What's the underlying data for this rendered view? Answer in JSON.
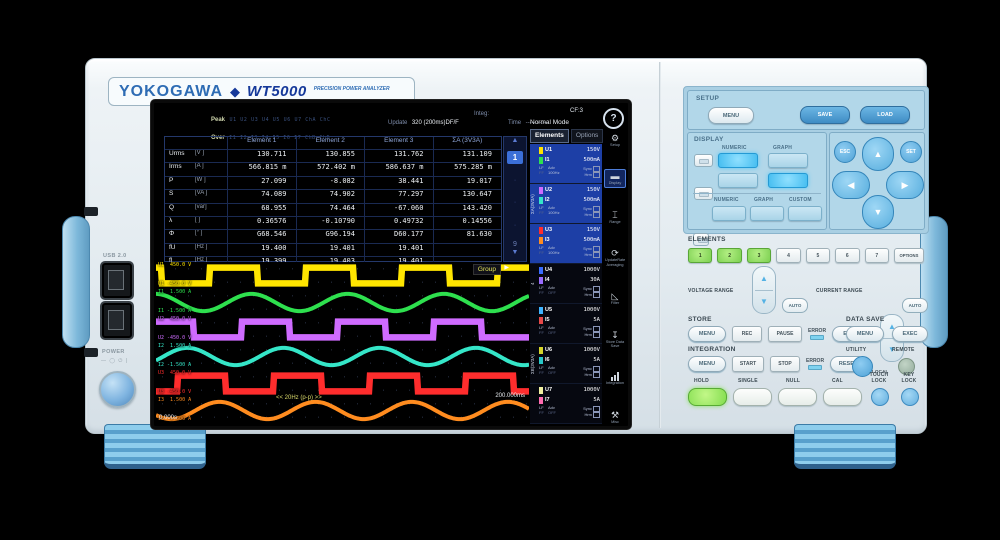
{
  "brand": {
    "logo": "YOKOGAWA",
    "diamond": "◆",
    "model": "WT5000",
    "tagline": "PRECISION POWER ANALYZER"
  },
  "left_side": {
    "usb_label": "USB 2.0",
    "power_label": "POWER",
    "power_symbols": "— ◯ ⏻ |"
  },
  "screen": {
    "status": {
      "peak_label": "Peak",
      "peak_values": "U1 U2 U3 U4 U5 U6 U7 ChA ChC",
      "over_label": "Over",
      "over_values": "I1 I2 I3 I4 I5 I6 I7 ChB ChD",
      "update_label": "Update",
      "update_value": "320 (200ms)DF/F",
      "integ_label": "Integ:",
      "time_label": "Time",
      "time_value": "-----:--:--",
      "mode": "Normal Mode",
      "cf": "CF:3",
      "help": "?"
    },
    "table": {
      "columns": [
        "Element 1",
        "Element 2",
        "Element 3",
        "ΣA (3V3A)"
      ],
      "rows": [
        {
          "name": "Urms",
          "unit": "[V  ]",
          "values": [
            "130.711",
            "130.855",
            "131.762",
            "131.109"
          ]
        },
        {
          "name": "Irms",
          "unit": "[A  ]",
          "values": [
            "566.815 m",
            "572.402 m",
            "586.637 m",
            "575.285 m"
          ]
        },
        {
          "name": "P",
          "unit": "[W  ]",
          "values": [
            "27.099",
            "-8.082",
            "38.441",
            "19.017"
          ]
        },
        {
          "name": "S",
          "unit": "[VA ]",
          "values": [
            "74.089",
            "74.902",
            "77.297",
            "130.647"
          ]
        },
        {
          "name": "Q",
          "unit": "[var]",
          "values": [
            "68.955",
            "74.464",
            "-67.060",
            "143.420"
          ]
        },
        {
          "name": "λ",
          "unit": "[   ]",
          "values": [
            "0.36576",
            "-0.10790",
            "0.49732",
            "0.14556"
          ]
        },
        {
          "name": "Φ",
          "unit": "[°  ]",
          "values": [
            "G68.546",
            "G96.194",
            "D60.177",
            "81.630"
          ]
        },
        {
          "name": "fU",
          "unit": "[Hz ]",
          "values": [
            "19.400",
            "19.401",
            "19.401",
            ""
          ]
        },
        {
          "name": "fI",
          "unit": "[Hz ]",
          "values": [
            "19.399",
            "19.403",
            "19.401",
            ""
          ]
        }
      ],
      "scroll": {
        "up": "▲",
        "page": "1",
        "dots": [
          "·",
          "·",
          "·"
        ],
        "last": "9",
        "down": "▼"
      }
    },
    "waveform": {
      "channels": [
        {
          "id": "U1",
          "type": "square",
          "color": "#ffe500",
          "top_label": "U1  450.0 V",
          "bottom_label": "U1 -450.0 V"
        },
        {
          "id": "I1",
          "type": "sine",
          "color": "#2ee04e",
          "top_label": "I1  1.500 A",
          "bottom_label": "I1 -1.500 A"
        },
        {
          "id": "U2",
          "type": "square",
          "color": "#cf6bff",
          "top_label": "U2  450.0 V",
          "bottom_label": "U2 -450.0 V"
        },
        {
          "id": "I2",
          "type": "sine",
          "color": "#35e6c8",
          "top_label": "I2  1.500 A",
          "bottom_label": "I2 -1.500 A"
        },
        {
          "id": "U3",
          "type": "square",
          "color": "#ff2d2d",
          "top_label": "U3  450.0 V",
          "bottom_label": "U3 -450.0 V"
        },
        {
          "id": "I3",
          "type": "sine",
          "color": "#ff8c1f",
          "top_label": "I3  1.500 A",
          "bottom_label": "I3 -1.500 A"
        }
      ],
      "group_label": "Group",
      "cursor": "▶",
      "time_start": "0.000s",
      "span_label": "<< 20Hz (p-p) >>",
      "time_end": "200.000ms"
    },
    "sidebar": {
      "tabs": [
        {
          "label": "Elements",
          "active": true
        },
        {
          "label": "Options",
          "active": false
        }
      ],
      "groups": [
        {
          "label": "ΣA(3V3A)",
          "span": 3
        },
        {
          "label": "4",
          "span": 1
        },
        {
          "label": "ΣB(3V3A)",
          "span": 3
        }
      ],
      "elements": [
        {
          "u": "U1",
          "u_range": "150V",
          "u_color": "#ffe500",
          "i": "I1",
          "i_range": "500mA",
          "i_color": "#2ee04e",
          "lf": "LF",
          "ff": "FF",
          "adv_label": "Adv",
          "adv": "100Hz",
          "sync_label": "Sync",
          "hrm_label": "Hrm",
          "highlight": true
        },
        {
          "u": "U2",
          "u_range": "150V",
          "u_color": "#cf6bff",
          "i": "I2",
          "i_range": "500mA",
          "i_color": "#35e6c8",
          "lf": "LF",
          "ff": "FF",
          "adv_label": "Adv",
          "adv": "100Hz",
          "sync_label": "Sync",
          "hrm_label": "Hrm",
          "highlight": true
        },
        {
          "u": "U3",
          "u_range": "150V",
          "u_color": "#ff2d2d",
          "i": "I3",
          "i_range": "500mA",
          "i_color": "#ff8c1f",
          "lf": "LF",
          "ff": "FF",
          "adv_label": "Adv",
          "adv": "100Hz",
          "sync_label": "Sync",
          "hrm_label": "Hrm",
          "highlight": true
        },
        {
          "u": "U4",
          "u_range": "1000V",
          "u_color": "#3a6cff",
          "i": "I4",
          "i_range": "30A",
          "i_color": "#9a6cff",
          "lf": "LF",
          "ff": "FF",
          "adv_label": "Adv",
          "adv": "OFF",
          "sync_label": "Sync",
          "hrm_label": "Hrm",
          "highlight": false
        },
        {
          "u": "U5",
          "u_range": "1000V",
          "u_color": "#3fb4ff",
          "i": "I5",
          "i_range": "5A",
          "i_color": "#e84848",
          "lf": "LF",
          "ff": "FF",
          "adv_label": "Adv",
          "adv": "OFF",
          "sync_label": "Sync",
          "hrm_label": "Hrm",
          "highlight": false
        },
        {
          "u": "U6",
          "u_range": "1000V",
          "u_color": "#d6d62a",
          "i": "I6",
          "i_range": "5A",
          "i_color": "#28c8c8",
          "lf": "LF",
          "ff": "FF",
          "adv_label": "Adv",
          "adv": "OFF",
          "sync_label": "Sync",
          "hrm_label": "Hrm",
          "highlight": false
        },
        {
          "u": "U7",
          "u_range": "1000V",
          "u_color": "#f0f0a0",
          "i": "I7",
          "i_range": "5A",
          "i_color": "#ff6bb0",
          "lf": "LF",
          "ff": "FF",
          "adv_label": "Adv",
          "adv": "OFF",
          "sync_label": "Sync",
          "hrm_label": "Hrm",
          "highlight": false
        }
      ]
    },
    "icon_rail": [
      {
        "name": "setup",
        "glyph": "⚙",
        "label": "Setup",
        "selected": false
      },
      {
        "name": "display",
        "glyph": "▬",
        "label": "Display",
        "selected": true
      },
      {
        "name": "range",
        "glyph": "⌶",
        "label": "Range",
        "selected": false
      },
      {
        "name": "update-rate",
        "glyph": "⟳",
        "label": "UpdateRate Averaging",
        "selected": false
      },
      {
        "name": "filter",
        "glyph": "◺",
        "label": "Filter",
        "selected": false
      },
      {
        "name": "store-data-save",
        "glyph": "↧",
        "label": "Store Data Save",
        "selected": false
      },
      {
        "name": "integration",
        "glyph": "bars",
        "label": "Integration",
        "selected": false
      },
      {
        "name": "misc",
        "glyph": "⚒",
        "label": "Misc",
        "selected": false
      }
    ]
  },
  "right_panel": {
    "setup": {
      "title": "SETUP",
      "menu": "MENU",
      "save": "SAVE",
      "load": "LOAD"
    },
    "display": {
      "title": "DISPLAY",
      "upper_labels": [
        "NUMERIC",
        "GRAPH"
      ],
      "lower_labels": [
        "NUMERIC",
        "GRAPH",
        "CUSTOM"
      ]
    },
    "nav": {
      "esc": "ESC",
      "set": "SET",
      "up": "▲",
      "left": "◀",
      "right": "▶",
      "down": "▼"
    },
    "elements": {
      "title": "ELEMENTS",
      "buttons": [
        "1",
        "2",
        "3",
        "4",
        "5",
        "6",
        "7"
      ],
      "active": [
        true,
        true,
        true,
        false,
        false,
        false,
        false
      ],
      "options": "OPTIONS"
    },
    "ranges": {
      "voltage": "VOLTAGE RANGE",
      "current": "CURRENT RANGE",
      "auto": "AUTO",
      "up": "▲",
      "down": "▼"
    },
    "store": {
      "title": "STORE",
      "menu": "MENU",
      "rec": "REC",
      "pause": "PAUSE",
      "error": "ERROR",
      "end": "END"
    },
    "data_save": {
      "title": "DATA SAVE",
      "menu": "MENU",
      "exec": "EXEC"
    },
    "integration": {
      "title": "INTEGRATION",
      "menu": "MENU",
      "start": "START",
      "stop": "STOP",
      "error": "ERROR",
      "reset": "RESET"
    },
    "utility": {
      "utility": "UTILITY",
      "remote": "REMOTE",
      "local": "LOCAL"
    },
    "bottom": {
      "hold": "HOLD",
      "single": "SINGLE",
      "null": "NULL",
      "cal": "CAL",
      "touch_lock": "TOUCH LOCK",
      "key_lock": "KEY LOCK"
    }
  }
}
